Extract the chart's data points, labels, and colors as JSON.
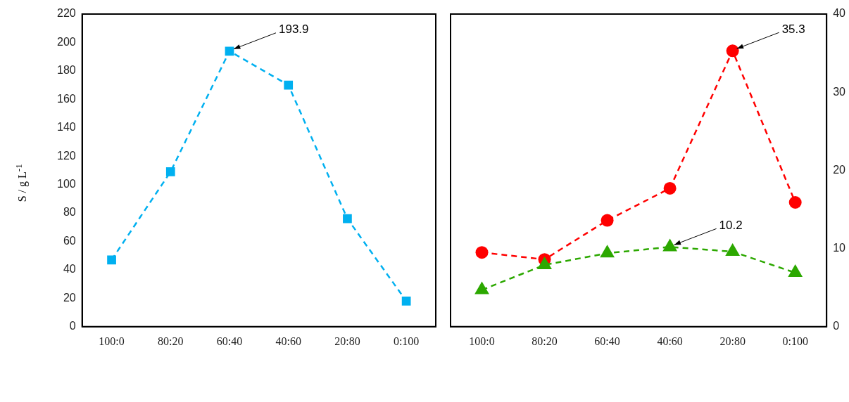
{
  "chart_data": [
    {
      "type": "line",
      "ylabel": "S / g L$^{-1}$",
      "categories": [
        "100:0",
        "80:20",
        "60:40",
        "40:60",
        "20:80",
        "0:100"
      ],
      "series": [
        {
          "color": "#00b0f0",
          "marker": "square",
          "values": [
            47,
            109,
            193.9,
            170,
            76,
            18
          ]
        }
      ],
      "ylim": [
        0,
        220
      ],
      "yticks": [
        0,
        20,
        40,
        60,
        80,
        100,
        120,
        140,
        160,
        180,
        200,
        220
      ],
      "line_style": "dashed",
      "grid": false,
      "legend": false,
      "annotations": [
        {
          "text": "193.9",
          "x": "60:40",
          "y": 193.9
        }
      ]
    },
    {
      "type": "line",
      "categories": [
        "100:0",
        "80:20",
        "60:40",
        "40:60",
        "20:80",
        "0:100"
      ],
      "series": [
        {
          "color": "#ff0000",
          "marker": "circle",
          "values": [
            9.5,
            8.6,
            13.6,
            17.7,
            35.3,
            15.9
          ]
        },
        {
          "color": "#2ca800",
          "marker": "triangle",
          "values": [
            4.7,
            7.9,
            9.4,
            10.2,
            9.6,
            6.9
          ]
        }
      ],
      "ylim": [
        0,
        40
      ],
      "yticks": [
        0,
        10,
        20,
        30,
        40
      ],
      "line_style": "dashed",
      "grid": false,
      "legend": false,
      "annotations": [
        {
          "text": "35.3",
          "x": "20:80",
          "y": 35.3
        },
        {
          "text": "10.2",
          "x": "40:60",
          "y": 10.2
        }
      ]
    }
  ]
}
